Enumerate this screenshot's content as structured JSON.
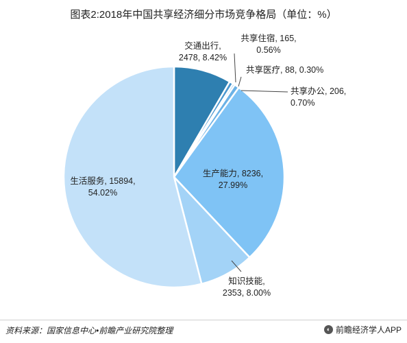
{
  "title": "图表2:2018年中国共享经济细分市场竞争格局（单位：%）",
  "footer": {
    "source": "资料来源：国家信息中心•前瞻产业研究院整理",
    "brand": "前瞻经济学人APP",
    "brand_icon": "qianzhan-logo-icon"
  },
  "chart_data": {
    "type": "pie",
    "title": "图表2:2018年中国共享经济细分市场竞争格局（单位：%）",
    "unit": "%",
    "start": "12 o'clock, clockwise",
    "slices": [
      {
        "name": "交通出行",
        "value": 2478,
        "percent": 8.42,
        "value_text": "2478, 8.42%",
        "color": "#2e7fb0",
        "label_lines": [
          "交通出行,",
          "2478, 8.42%"
        ]
      },
      {
        "name": "共享住宿",
        "value": 165,
        "percent": 0.56,
        "value_text": "165, 0.56%",
        "color": "#4a97cf",
        "label_lines": [
          "共享住宿, 165,",
          "0.56%"
        ]
      },
      {
        "name": "共享医疗",
        "value": 88,
        "percent": 0.3,
        "value_text": "88, 0.30%",
        "color": "#5aa6dc",
        "label_lines": [
          "共享医疗, 88, 0.30%"
        ]
      },
      {
        "name": "共享办公",
        "value": 206,
        "percent": 0.7,
        "value_text": "206, 0.70%",
        "color": "#6bb2e6",
        "label_lines": [
          "共享办公, 206,",
          "0.70%"
        ]
      },
      {
        "name": "生产能力",
        "value": 8236,
        "percent": 27.99,
        "value_text": "8236, 27.99%",
        "color": "#7fc3f5",
        "label_lines": [
          "生产能力, 8236,",
          "27.99%"
        ]
      },
      {
        "name": "知识技能",
        "value": 2353,
        "percent": 8.0,
        "value_text": "2353, 8.00%",
        "color": "#a3d3f7",
        "label_lines": [
          "知识技能,",
          "2353, 8.00%"
        ]
      },
      {
        "name": "生活服务",
        "value": 15894,
        "percent": 54.02,
        "value_text": "15894, 54.02%",
        "color": "#c3e1f9",
        "label_lines": [
          "生活服务, 15894,",
          "54.02%"
        ]
      }
    ]
  }
}
